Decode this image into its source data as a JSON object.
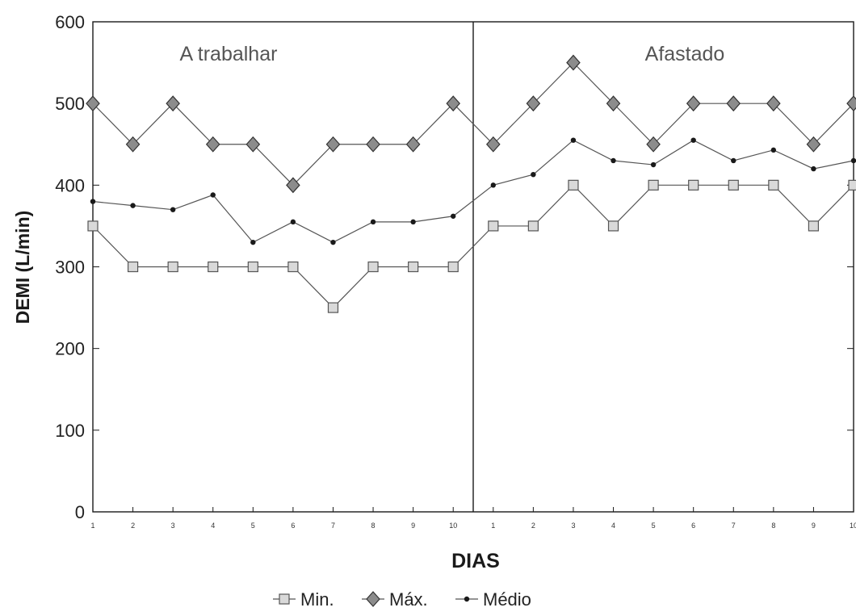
{
  "chart_data": {
    "type": "line",
    "xlabel": "DIAS",
    "ylabel": "DEMI (L/min)",
    "ylim": [
      0,
      600
    ],
    "yticks": [
      0,
      100,
      200,
      300,
      400,
      500,
      600
    ],
    "grid": false,
    "legend_position": "bottom",
    "categories": [
      "1",
      "2",
      "3",
      "4",
      "5",
      "6",
      "7",
      "8",
      "9",
      "10",
      "1",
      "2",
      "3",
      "4",
      "5",
      "6",
      "7",
      "8",
      "9",
      "10"
    ],
    "regions": [
      {
        "label": "A trabalhar",
        "start_index": 0,
        "end_index": 9
      },
      {
        "label": "Afastado",
        "start_index": 10,
        "end_index": 19
      }
    ],
    "series": [
      {
        "name": "Min.",
        "marker": "square",
        "values": [
          350,
          300,
          300,
          300,
          300,
          300,
          250,
          300,
          300,
          300,
          350,
          350,
          400,
          350,
          400,
          400,
          400,
          400,
          350,
          400
        ]
      },
      {
        "name": "Máx.",
        "marker": "diamond",
        "values": [
          500,
          450,
          500,
          450,
          450,
          400,
          450,
          450,
          450,
          500,
          450,
          500,
          550,
          500,
          450,
          500,
          500,
          500,
          450,
          500
        ]
      },
      {
        "name": "Médio",
        "marker": "dot",
        "values": [
          380,
          375,
          370,
          388,
          330,
          355,
          330,
          355,
          355,
          362,
          400,
          413,
          455,
          430,
          425,
          455,
          430,
          443,
          420,
          430
        ]
      }
    ],
    "colors": {
      "frame": "#1a1a1a",
      "line": "#555555",
      "square_fill": "#d9d9d9",
      "diamond_fill": "#8c8c8c",
      "dot": "#1a1a1a"
    }
  }
}
